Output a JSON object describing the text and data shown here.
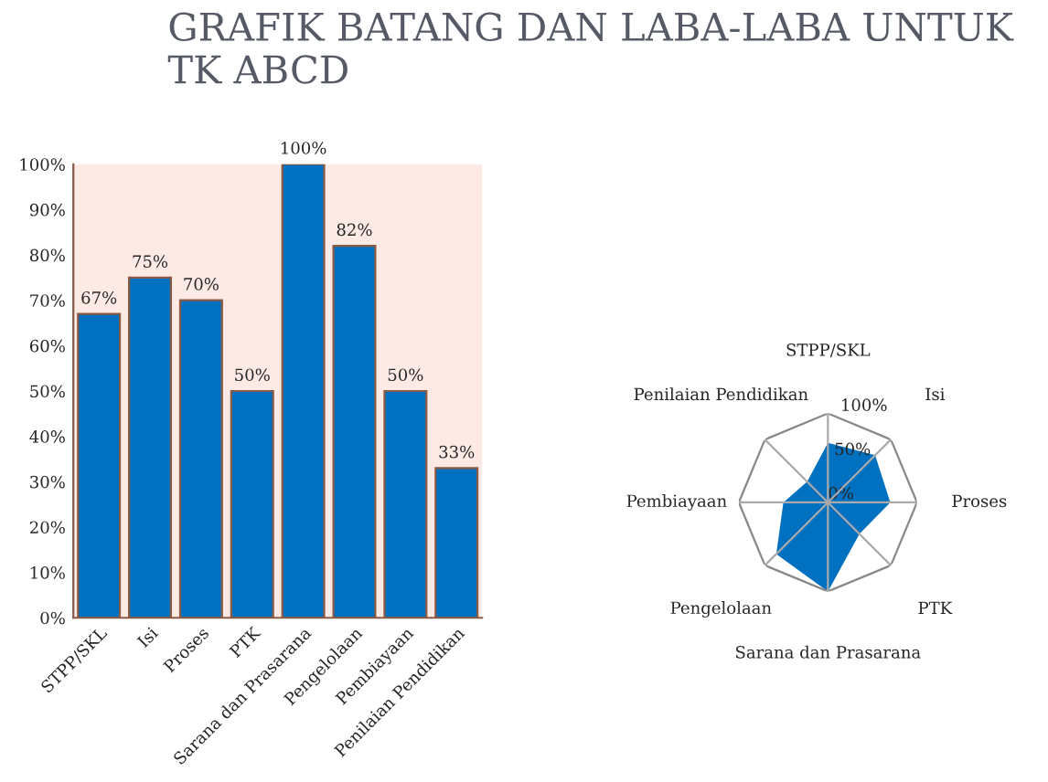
{
  "chart_data": [
    {
      "type": "bar",
      "title": "GRAFIK BATANG DAN LABA-LABA UNTUK TK ABCD",
      "categories": [
        "STPP/SKL",
        "Isi",
        "Proses",
        "PTK",
        "Sarana dan Prasarana",
        "Pengelolaan",
        "Pembiayaan",
        "Penilaian Pendidikan"
      ],
      "values": [
        67,
        75,
        70,
        50,
        100,
        82,
        50,
        33
      ],
      "color": "#0070c0",
      "value_labels": [
        "67%",
        "75%",
        "70%",
        "50%",
        "100%",
        "82%",
        "50%",
        "33%"
      ],
      "ylim": [
        0,
        100
      ],
      "yticks": [
        {
          "value": 0,
          "label": "0%"
        },
        {
          "value": 10,
          "label": "10%"
        },
        {
          "value": 20,
          "label": "20%"
        },
        {
          "value": 30,
          "label": "30%"
        },
        {
          "value": 40,
          "label": "40%"
        },
        {
          "value": 50,
          "label": "50%"
        },
        {
          "value": 60,
          "label": "60%"
        },
        {
          "value": 70,
          "label": "70%"
        },
        {
          "value": 80,
          "label": "80%"
        },
        {
          "value": 90,
          "label": "90%"
        },
        {
          "value": 100,
          "label": "100%"
        }
      ],
      "grid": false
    },
    {
      "type": "radar",
      "categories": [
        "STPP/SKL",
        "Isi",
        "Proses",
        "PTK",
        "Sarana dan Prasarana",
        "Pengelolaan",
        "Pembiayaan",
        "Penilaian Pendidikan"
      ],
      "series": [
        {
          "color": "#0070c0",
          "values": [
            67,
            75,
            70,
            50,
            100,
            82,
            50,
            33
          ]
        }
      ],
      "ylim": [
        0,
        100
      ],
      "yticks": [
        {
          "value": 0,
          "label": "0%"
        },
        {
          "value": 50,
          "label": "50%"
        },
        {
          "value": 100,
          "label": "100%"
        }
      ],
      "grid": true
    }
  ]
}
